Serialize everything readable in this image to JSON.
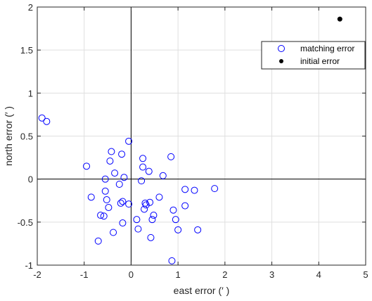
{
  "chart_data": {
    "type": "scatter",
    "xlabel": "east error (′ )",
    "ylabel": "north error (′ )",
    "xlim": [
      -2,
      5
    ],
    "ylim": [
      -1,
      2
    ],
    "xticks": [
      "-2",
      "-1",
      "0",
      "1",
      "2",
      "3",
      "4",
      "5"
    ],
    "yticks": [
      "-1",
      "-0.5",
      "0",
      "0.5",
      "1",
      "1.5",
      "2"
    ],
    "grid": true,
    "legend_position": "top-right",
    "series": [
      {
        "name": "matching error",
        "marker": "open-circle",
        "color": "#0000ff",
        "x": [
          -1.9,
          -1.8,
          -0.95,
          -0.85,
          -0.7,
          -0.65,
          -0.58,
          -0.55,
          -0.55,
          -0.52,
          -0.48,
          -0.45,
          -0.42,
          -0.38,
          -0.35,
          -0.25,
          -0.22,
          -0.2,
          -0.18,
          -0.18,
          -0.15,
          -0.05,
          -0.05,
          0.12,
          0.15,
          0.22,
          0.25,
          0.25,
          0.28,
          0.3,
          0.32,
          0.38,
          0.4,
          0.42,
          0.45,
          0.48,
          0.6,
          0.68,
          0.85,
          0.87,
          0.9,
          0.95,
          1.0,
          1.15,
          1.15,
          1.35,
          1.42,
          1.78
        ],
        "y": [
          0.71,
          0.67,
          0.15,
          -0.21,
          -0.72,
          -0.42,
          -0.43,
          0.0,
          -0.14,
          -0.24,
          -0.33,
          0.21,
          0.32,
          -0.62,
          0.07,
          -0.06,
          -0.28,
          0.29,
          -0.51,
          -0.26,
          0.02,
          -0.29,
          0.44,
          -0.47,
          -0.58,
          -0.02,
          0.24,
          0.14,
          -0.35,
          -0.28,
          -0.3,
          0.09,
          -0.27,
          -0.68,
          -0.47,
          -0.42,
          -0.21,
          0.04,
          0.26,
          -0.95,
          -0.36,
          -0.47,
          -0.59,
          -0.12,
          -0.31,
          -0.13,
          -0.59,
          -0.11
        ]
      },
      {
        "name": "initial error",
        "marker": "filled-dot",
        "color": "#000000",
        "x": [
          4.45
        ],
        "y": [
          1.86
        ]
      }
    ]
  }
}
